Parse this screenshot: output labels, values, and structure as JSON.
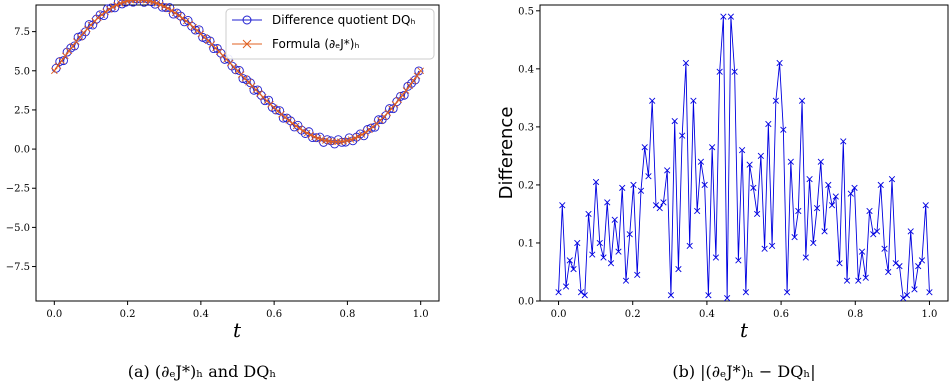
{
  "chart_data": [
    {
      "type": "line",
      "xlabel": "t",
      "ylabel": "",
      "caption": "(a) (∂ₑJ*)ₕ and DQₕ",
      "xlim": [
        -0.05,
        1.05
      ],
      "ylim": [
        -9.7,
        9.2
      ],
      "xticks": [
        0.0,
        0.2,
        0.4,
        0.6,
        0.8,
        1.0
      ],
      "xtick_labels": [
        "0.0",
        "0.2",
        "0.4",
        "0.6",
        "0.8",
        "1.0"
      ],
      "yticks": [
        -7.5,
        -5.0,
        -2.5,
        0.0,
        2.5,
        5.0,
        7.5
      ],
      "ytick_labels": [
        "−7.5",
        "−5.0",
        "−2.5",
        "0.0",
        "2.5",
        "5.0",
        "7.5"
      ],
      "legend_position": "top-right",
      "series": [
        {
          "name": "Difference quotient DQₕ",
          "color": "#1f1fd0",
          "marker": "circle-open"
        },
        {
          "name": "Formula (∂ₑJ*)ₕ",
          "color": "#e06020",
          "marker": "x"
        }
      ],
      "curve": "y = 5 + 4.5·sin(2πt) + 0.3·sin(4πt)"
    },
    {
      "type": "line",
      "xlabel": "t",
      "ylabel": "Difference",
      "caption": "(b) |(∂ₑJ*)ₕ − DQₕ|",
      "xlim": [
        -0.05,
        1.05
      ],
      "ylim": [
        0.0,
        0.51
      ],
      "xticks": [
        0.0,
        0.2,
        0.4,
        0.6,
        0.8,
        1.0
      ],
      "xtick_labels": [
        "0.0",
        "0.2",
        "0.4",
        "0.6",
        "0.8",
        "1.0"
      ],
      "yticks": [
        0.0,
        0.1,
        0.2,
        0.3,
        0.4,
        0.5
      ],
      "ytick_labels": [
        "0.0",
        "0.1",
        "0.2",
        "0.3",
        "0.4",
        "0.5"
      ],
      "series": [
        {
          "name": "",
          "color": "#0000e0",
          "marker": "x",
          "values": [
            0.015,
            0.165,
            0.025,
            0.07,
            0.055,
            0.1,
            0.015,
            0.01,
            0.15,
            0.08,
            0.205,
            0.1,
            0.075,
            0.17,
            0.065,
            0.14,
            0.085,
            0.195,
            0.035,
            0.115,
            0.2,
            0.045,
            0.19,
            0.265,
            0.215,
            0.345,
            0.165,
            0.16,
            0.17,
            0.225,
            0.01,
            0.31,
            0.055,
            0.285,
            0.41,
            0.095,
            0.345,
            0.155,
            0.24,
            0.2,
            0.01,
            0.265,
            0.075,
            0.395,
            0.49,
            0.005,
            0.49,
            0.395,
            0.07,
            0.26,
            0.015,
            0.235,
            0.195,
            0.15,
            0.25,
            0.09,
            0.305,
            0.095,
            0.345,
            0.41,
            0.295,
            0.015,
            0.24,
            0.11,
            0.155,
            0.345,
            0.075,
            0.21,
            0.1,
            0.16,
            0.24,
            0.12,
            0.2,
            0.165,
            0.18,
            0.065,
            0.275,
            0.035,
            0.185,
            0.195,
            0.035,
            0.085,
            0.04,
            0.155,
            0.115,
            0.12,
            0.2,
            0.09,
            0.05,
            0.21,
            0.065,
            0.06,
            0.005,
            0.01,
            0.12,
            0.02,
            0.06,
            0.07,
            0.165,
            0.015
          ]
        }
      ]
    }
  ]
}
